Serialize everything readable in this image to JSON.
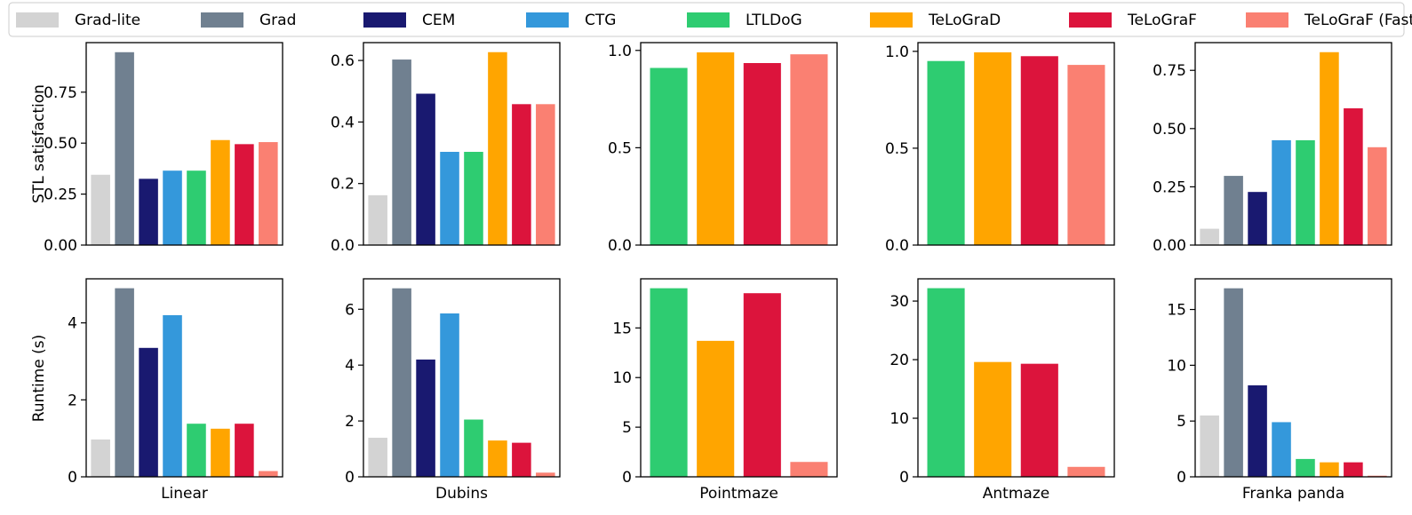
{
  "chart_data": {
    "type": "bar",
    "methods": [
      "Grad-lite",
      "Grad",
      "CEM",
      "CTG",
      "LTLDoG",
      "TeLoGraD",
      "TeLoGraF",
      "TeLoGraF (Fast)"
    ],
    "colors": {
      "Grad-lite": "#d3d3d3",
      "Grad": "#708090",
      "CEM": "#191970",
      "CTG": "#3498db",
      "LTLDoG": "#2ecc71",
      "TeLoGraD": "#ffa500",
      "TeLoGraF": "#dc143c",
      "TeLoGraF (Fast)": "#fa8072"
    },
    "legend_position": "top",
    "row_ylabels": [
      "STL satisfaction",
      "Runtime (s)"
    ],
    "panels": [
      {
        "row": 0,
        "col": 0,
        "xlabel": "",
        "methods": [
          "Grad-lite",
          "Grad",
          "CEM",
          "CTG",
          "LTLDoG",
          "TeLoGraD",
          "TeLoGraF",
          "TeLoGraF (Fast)"
        ],
        "values": [
          0.345,
          0.946,
          0.325,
          0.365,
          0.365,
          0.515,
          0.495,
          0.505
        ],
        "ylim": [
          0,
          0.993
        ],
        "yticks": [
          0,
          0.25,
          0.5,
          0.75
        ],
        "yticklabels": [
          "0.00",
          "0.25",
          "0.50",
          "0.75"
        ]
      },
      {
        "row": 0,
        "col": 1,
        "xlabel": "",
        "methods": [
          "Grad-lite",
          "Grad",
          "CEM",
          "CTG",
          "LTLDoG",
          "TeLoGraD",
          "TeLoGraF",
          "TeLoGraF (Fast)"
        ],
        "values": [
          0.162,
          0.603,
          0.492,
          0.303,
          0.303,
          0.627,
          0.458,
          0.458
        ],
        "ylim": [
          0,
          0.658
        ],
        "yticks": [
          0,
          0.2,
          0.4,
          0.6
        ],
        "yticklabels": [
          "0.0",
          "0.2",
          "0.4",
          "0.6"
        ]
      },
      {
        "row": 0,
        "col": 2,
        "xlabel": "",
        "methods": [
          "LTLDoG",
          "TeLoGraD",
          "TeLoGraF",
          "TeLoGraF (Fast)"
        ],
        "values": [
          0.91,
          0.99,
          0.935,
          0.98
        ],
        "ylim": [
          0,
          1.04
        ],
        "yticks": [
          0,
          0.5,
          1.0
        ],
        "yticklabels": [
          "0.0",
          "0.5",
          "1.0"
        ]
      },
      {
        "row": 0,
        "col": 3,
        "xlabel": "",
        "methods": [
          "LTLDoG",
          "TeLoGraD",
          "TeLoGraF",
          "TeLoGraF (Fast)"
        ],
        "values": [
          0.95,
          0.995,
          0.975,
          0.93
        ],
        "ylim": [
          0,
          1.045
        ],
        "yticks": [
          0,
          0.5,
          1.0
        ],
        "yticklabels": [
          "0.0",
          "0.5",
          "1.0"
        ]
      },
      {
        "row": 0,
        "col": 4,
        "xlabel": "",
        "methods": [
          "Grad-lite",
          "Grad",
          "CEM",
          "CTG",
          "LTLDoG",
          "TeLoGraD",
          "TeLoGraF",
          "TeLoGraF (Fast)"
        ],
        "values": [
          0.07,
          0.297,
          0.228,
          0.45,
          0.45,
          0.828,
          0.587,
          0.42
        ],
        "ylim": [
          0,
          0.869
        ],
        "yticks": [
          0,
          0.25,
          0.5,
          0.75
        ],
        "yticklabels": [
          "0.00",
          "0.25",
          "0.50",
          "0.75"
        ]
      },
      {
        "row": 1,
        "col": 0,
        "xlabel": "Linear",
        "methods": [
          "Grad-lite",
          "Grad",
          "CEM",
          "CTG",
          "LTLDoG",
          "TeLoGraD",
          "TeLoGraF",
          "TeLoGraF (Fast)"
        ],
        "values": [
          0.97,
          4.9,
          3.35,
          4.2,
          1.38,
          1.25,
          1.38,
          0.15
        ],
        "ylim": [
          0,
          5.145
        ],
        "yticks": [
          0,
          2,
          4
        ],
        "yticklabels": [
          "0",
          "2",
          "4"
        ]
      },
      {
        "row": 1,
        "col": 1,
        "xlabel": "Dubins",
        "methods": [
          "Grad-lite",
          "Grad",
          "CEM",
          "CTG",
          "LTLDoG",
          "TeLoGraD",
          "TeLoGraF",
          "TeLoGraF (Fast)"
        ],
        "values": [
          1.4,
          6.75,
          4.2,
          5.85,
          2.05,
          1.3,
          1.22,
          0.15
        ],
        "ylim": [
          0,
          7.09
        ],
        "yticks": [
          0,
          2,
          4,
          6
        ],
        "yticklabels": [
          "0",
          "2",
          "4",
          "6"
        ]
      },
      {
        "row": 1,
        "col": 2,
        "xlabel": "Pointmaze",
        "methods": [
          "LTLDoG",
          "TeLoGraD",
          "TeLoGraF",
          "TeLoGraF (Fast)"
        ],
        "values": [
          19.0,
          13.7,
          18.5,
          1.5
        ],
        "ylim": [
          0,
          19.95
        ],
        "yticks": [
          0,
          5,
          10,
          15
        ],
        "yticklabels": [
          "0",
          "5",
          "10",
          "15"
        ]
      },
      {
        "row": 1,
        "col": 3,
        "xlabel": "Antmaze",
        "methods": [
          "LTLDoG",
          "TeLoGraD",
          "TeLoGraF",
          "TeLoGraF (Fast)"
        ],
        "values": [
          32.2,
          19.6,
          19.3,
          1.7
        ],
        "ylim": [
          0,
          33.8
        ],
        "yticks": [
          0,
          10,
          20,
          30
        ],
        "yticklabels": [
          "0",
          "10",
          "20",
          "30"
        ]
      },
      {
        "row": 1,
        "col": 4,
        "xlabel": "Franka panda",
        "methods": [
          "Grad-lite",
          "Grad",
          "CEM",
          "CTG",
          "LTLDoG",
          "TeLoGraD",
          "TeLoGraF",
          "TeLoGraF (Fast)"
        ],
        "values": [
          5.5,
          16.9,
          8.2,
          4.9,
          1.6,
          1.3,
          1.3,
          0.1
        ],
        "ylim": [
          0,
          17.75
        ],
        "yticks": [
          0,
          5,
          10,
          15
        ],
        "yticklabels": [
          "0",
          "5",
          "10",
          "15"
        ]
      }
    ]
  }
}
